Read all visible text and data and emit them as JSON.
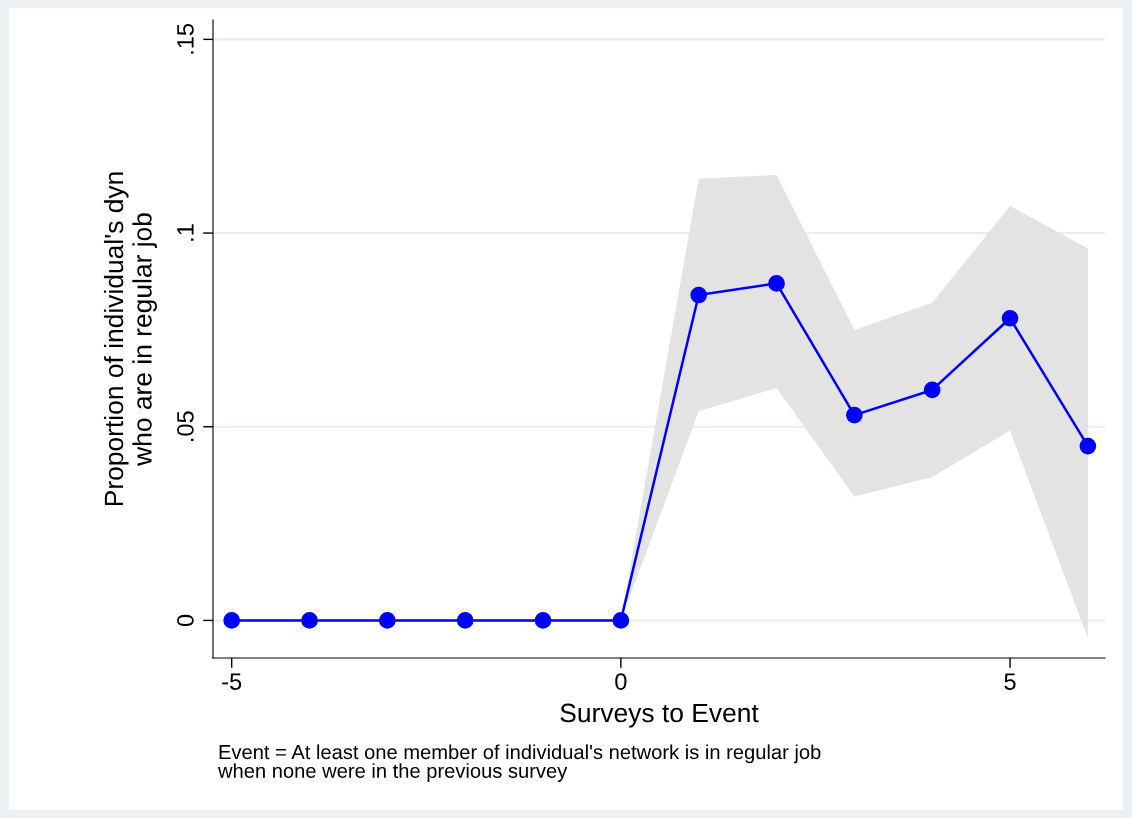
{
  "chart_data": {
    "type": "line",
    "xlabel": "Surveys to Event",
    "ylabel": "Proportion of individual's dyn\nwho are in regular job",
    "x": [
      -5,
      -4,
      -3,
      -2,
      -1,
      0,
      1,
      2,
      3,
      4,
      5,
      6
    ],
    "series": [
      {
        "color": "#0000ff",
        "values": [
          0,
          0,
          0,
          0,
          0,
          0,
          0.084,
          0.087,
          0.053,
          0.0595,
          0.078,
          0.045
        ],
        "lower": [
          0,
          0,
          0,
          0,
          0,
          0,
          0.054,
          0.06,
          0.032,
          0.037,
          0.049,
          -0.0045
        ],
        "upper": [
          0,
          0,
          0,
          0,
          0,
          0,
          0.114,
          0.115,
          0.075,
          0.082,
          0.107,
          0.096
        ]
      }
    ],
    "marker": "circle",
    "line_style": "solid",
    "grid": "y",
    "xlim": [
      -5.24,
      6.22
    ],
    "ylim": [
      -0.0097,
      0.155
    ],
    "xticks": [
      {
        "value": -5,
        "label": "-5"
      },
      0,
      5
    ],
    "yticks": [
      0,
      {
        "value": 0.05,
        "label": ".05"
      },
      {
        "value": 0.1,
        "label": ".1"
      },
      {
        "value": 0.15,
        "label": ".15"
      }
    ],
    "annotations": [
      "Event = At least one member of individual's network is in regular job\nwhen none were in the previous survey"
    ]
  }
}
